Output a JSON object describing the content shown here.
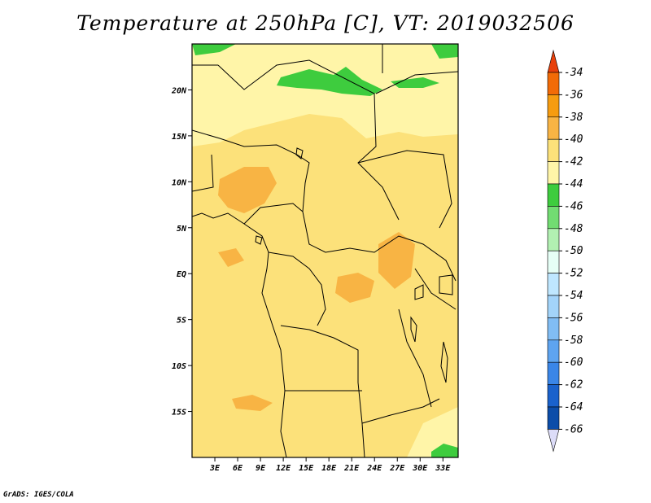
{
  "title": "Temperature at 250hPa [C], VT: 2019032506",
  "credit": "GrADS: IGES/COLA",
  "map": {
    "lon_range": [
      0,
      35
    ],
    "lat_range": [
      -20,
      25
    ],
    "lon_ticks": [
      3,
      6,
      9,
      12,
      15,
      18,
      21,
      24,
      27,
      30,
      33
    ],
    "lon_tick_labels": [
      "3E",
      "6E",
      "9E",
      "12E",
      "15E",
      "18E",
      "21E",
      "24E",
      "27E",
      "30E",
      "33E"
    ],
    "lat_ticks": [
      20,
      15,
      10,
      5,
      0,
      -5,
      -10,
      -15
    ],
    "lat_tick_labels": [
      "20N",
      "15N",
      "10N",
      "5N",
      "EQ",
      "5S",
      "10S",
      "15S"
    ],
    "base_color": "#fce17a",
    "regions": [
      {
        "name": "cold-north-band",
        "color": "#fff5a8"
      },
      {
        "name": "green-sahara-patch",
        "color": "#3ecc3e"
      },
      {
        "name": "warm-nigeria-patch",
        "color": "#f8b444"
      },
      {
        "name": "warm-congo-patch",
        "color": "#f8b444"
      }
    ]
  },
  "colorbar": {
    "levels": [
      "-34",
      "-36",
      "-38",
      "-40",
      "-42",
      "-44",
      "-46",
      "-48",
      "-50",
      "-52",
      "-54",
      "-56",
      "-58",
      "-60",
      "-62",
      "-64",
      "-66"
    ],
    "colors": [
      "#e8400b",
      "#f26b07",
      "#f69c10",
      "#f8b444",
      "#fce17a",
      "#fff5a8",
      "#3ecc3e",
      "#72dc72",
      "#b2f0b2",
      "#e6fff6",
      "#bfe7ff",
      "#a3d4fa",
      "#81bdf4",
      "#5ea4f0",
      "#3a86e8",
      "#1a62cc",
      "#0c4da9",
      "#0a148a",
      "#dcdcf8"
    ]
  }
}
